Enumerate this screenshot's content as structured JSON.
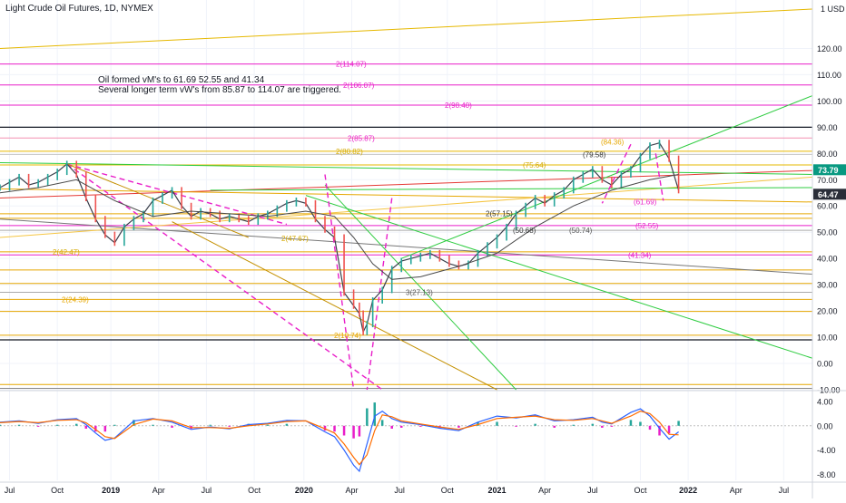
{
  "chart_data": {
    "type": "line",
    "title": "Light Crude Oil Futures, 1D, NYMEX",
    "currency": "USD",
    "annotation": [
      "Oil formed vM's to 61.69 52.55 and 41.34",
      "Several longer term vW's from 85.87 to 114.07 are triggered."
    ],
    "price_axis": {
      "ticks": [
        "120.00",
        "110.00",
        "100.00",
        "90.00",
        "80.00",
        "70.00",
        "60.00",
        "50.00",
        "40.00",
        "30.00",
        "20.00",
        "10.00",
        "0.00",
        "-10.00"
      ],
      "ylim": [
        -10,
        135
      ]
    },
    "time_axis": {
      "ticks": [
        "Jul",
        "Oct",
        "2019",
        "Apr",
        "Jul",
        "Oct",
        "2020",
        "Apr",
        "Jul",
        "Oct",
        "2021",
        "Apr",
        "Jul",
        "Oct",
        "2022",
        "Apr",
        "Jul"
      ],
      "bold": [
        "2019",
        "2020",
        "2021",
        "2022"
      ],
      "range": [
        2018.4,
        2022.65
      ]
    },
    "price_badges": [
      {
        "label": "73.79",
        "value": 73.79,
        "color": "#089981"
      },
      {
        "label": "64.47",
        "value": 64.47,
        "color": "#2a2e39"
      }
    ],
    "level_labels": [
      {
        "text": "2(114.07)",
        "value": 114.07,
        "color": "#e91ec9"
      },
      {
        "text": "2(106.07)",
        "value": 106.07,
        "color": "#e91ec9"
      },
      {
        "text": "2(98.40)",
        "value": 98.4,
        "color": "#e91ec9"
      },
      {
        "text": "2(85.87)",
        "value": 85.87,
        "color": "#e91ec9"
      },
      {
        "text": "2(80.82)",
        "value": 80.82,
        "color": "#d4a900"
      },
      {
        "text": "(84.36)",
        "value": 84.36,
        "color": "#e6a700"
      },
      {
        "text": "(79.58)",
        "value": 79.58,
        "color": "#333333"
      },
      {
        "text": "(75.64)",
        "value": 75.64,
        "color": "#d4a900"
      },
      {
        "text": "(61.69)",
        "value": 61.69,
        "color": "#e91ec9"
      },
      {
        "text": "2(57.15)",
        "value": 57.15,
        "color": "#333333"
      },
      {
        "text": "(50.68)",
        "value": 50.68,
        "color": "#333333"
      },
      {
        "text": "(50.74)",
        "value": 50.74,
        "color": "#555555"
      },
      {
        "text": "(52.55)",
        "value": 52.55,
        "color": "#e91ec9"
      },
      {
        "text": "2(47.67)",
        "value": 47.67,
        "color": "#d4a900"
      },
      {
        "text": "2(42.47)",
        "value": 42.47,
        "color": "#d4a900"
      },
      {
        "text": "(41.34)",
        "value": 41.34,
        "color": "#e91ec9"
      },
      {
        "text": "2(24.39)",
        "value": 24.39,
        "color": "#e6a700"
      },
      {
        "text": "3(27.13)",
        "value": 27.13,
        "color": "#555555"
      },
      {
        "text": "2(10.74)",
        "value": 10.74,
        "color": "#e6a700"
      }
    ],
    "horizontal_levels": [
      {
        "value": 114.07,
        "color": "#e91ec9"
      },
      {
        "value": 106.07,
        "color": "#e91ec9"
      },
      {
        "value": 98.4,
        "color": "#e91ec9"
      },
      {
        "value": 90.0,
        "color": "#131722"
      },
      {
        "value": 85.87,
        "color": "#f48fb1"
      },
      {
        "value": 80.82,
        "color": "#e6b800"
      },
      {
        "value": 79.58,
        "color": "#cccccc"
      },
      {
        "value": 75.64,
        "color": "#e6b800"
      },
      {
        "value": 57.0,
        "color": "#e6a700"
      },
      {
        "value": 55.3,
        "color": "#e6a700"
      },
      {
        "value": 50.7,
        "color": "#aaaaaa"
      },
      {
        "value": 52.55,
        "color": "#e91ec9"
      },
      {
        "value": 41.34,
        "color": "#e91ec9"
      },
      {
        "value": 42.5,
        "color": "#e6a700"
      },
      {
        "value": 35.6,
        "color": "#e6a700"
      },
      {
        "value": 30.5,
        "color": "#e6a700"
      },
      {
        "value": 24.39,
        "color": "#e6a700"
      },
      {
        "value": 27.13,
        "color": "#aaaaaa"
      },
      {
        "value": 19.8,
        "color": "#e6a700"
      },
      {
        "value": 10.74,
        "color": "#e6a700"
      },
      {
        "value": 9.0,
        "color": "#131722"
      },
      {
        "value": -8.0,
        "color": "#e6a700"
      },
      {
        "value": -9.5,
        "color": "#888888"
      }
    ],
    "trend_lines": [
      {
        "p1": [
          2018.4,
          120.0
        ],
        "p2": [
          2022.65,
          135.0
        ],
        "color": "#e6b800",
        "dash": false
      },
      {
        "p1": [
          2018.4,
          63.0
        ],
        "p2": [
          2022.65,
          73.5
        ],
        "color": "#e53935",
        "dash": false
      },
      {
        "p1": [
          2018.4,
          66.5
        ],
        "p2": [
          2022.65,
          61.5
        ],
        "color": "#e6a700",
        "dash": false
      },
      {
        "p1": [
          2018.4,
          55.0
        ],
        "p2": [
          2022.65,
          34.0
        ],
        "color": "#777777",
        "dash": false
      },
      {
        "p1": [
          2018.4,
          48.0
        ],
        "p2": [
          2022.65,
          71.0
        ],
        "color": "#f5c542",
        "dash": false
      },
      {
        "p1": [
          2018.4,
          76.5
        ],
        "p2": [
          2022.65,
          72.0
        ],
        "color": "#2ecc40",
        "dash": false
      },
      {
        "p1": [
          2019.5,
          66.0
        ],
        "p2": [
          2022.65,
          67.0
        ],
        "color": "#2ecc40",
        "dash": false
      },
      {
        "p1": [
          2020.0,
          64.0
        ],
        "p2": [
          2022.65,
          2.0
        ],
        "color": "#2ecc40",
        "dash": false
      },
      {
        "p1": [
          2020.1,
          68.0
        ],
        "p2": [
          2021.1,
          -10.0
        ],
        "color": "#2ecc40",
        "dash": false
      },
      {
        "p1": [
          2020.5,
          40.0
        ],
        "p2": [
          2022.65,
          102.0
        ],
        "color": "#2ecc40",
        "dash": false
      },
      {
        "p1": [
          2018.75,
          76.0
        ],
        "p2": [
          2020.4,
          -10.0
        ],
        "color": "#e91ec9",
        "dash": true
      },
      {
        "p1": [
          2018.75,
          76.0
        ],
        "p2": [
          2019.9,
          53.0
        ],
        "color": "#e91ec9",
        "dash": true
      },
      {
        "p1": [
          2020.1,
          72.0
        ],
        "p2": [
          2020.25,
          -10.0
        ],
        "color": "#e91ec9",
        "dash": true
      },
      {
        "p1": [
          2020.45,
          63.0
        ],
        "p2": [
          2020.32,
          -10.0
        ],
        "color": "#e91ec9",
        "dash": true
      },
      {
        "p1": [
          2021.7,
          83.5
        ],
        "p2": [
          2021.55,
          61.0
        ],
        "color": "#e91ec9",
        "dash": true
      },
      {
        "p1": [
          2021.83,
          80.0
        ],
        "p2": [
          2021.87,
          62.0
        ],
        "color": "#e91ec9",
        "dash": true
      },
      {
        "p1": [
          2018.75,
          76.0
        ],
        "p2": [
          2019.7,
          48.0
        ],
        "color": "#c49000",
        "dash": false
      },
      {
        "p1": [
          2019.3,
          54.0
        ],
        "p2": [
          2021.0,
          -10.0
        ],
        "color": "#c49000",
        "dash": false
      }
    ],
    "price_series": {
      "name": "Close",
      "x": [
        2018.4,
        2018.45,
        2018.5,
        2018.55,
        2018.6,
        2018.65,
        2018.7,
        2018.75,
        2018.8,
        2018.85,
        2018.9,
        2018.95,
        2019.0,
        2019.05,
        2019.1,
        2019.15,
        2019.2,
        2019.25,
        2019.3,
        2019.35,
        2019.4,
        2019.45,
        2019.5,
        2019.55,
        2019.6,
        2019.65,
        2019.7,
        2019.75,
        2019.8,
        2019.85,
        2019.9,
        2019.95,
        2020.0,
        2020.05,
        2020.1,
        2020.15,
        2020.2,
        2020.25,
        2020.28,
        2020.3,
        2020.32,
        2020.35,
        2020.4,
        2020.45,
        2020.5,
        2020.55,
        2020.6,
        2020.65,
        2020.7,
        2020.75,
        2020.8,
        2020.85,
        2020.9,
        2020.95,
        2021.0,
        2021.05,
        2021.1,
        2021.15,
        2021.2,
        2021.25,
        2021.3,
        2021.35,
        2021.4,
        2021.45,
        2021.5,
        2021.55,
        2021.6,
        2021.65,
        2021.7,
        2021.75,
        2021.8,
        2021.85,
        2021.9,
        2021.95
      ],
      "values": [
        67,
        69,
        71,
        68,
        69,
        71,
        73,
        76,
        72,
        63,
        55,
        49,
        46,
        52,
        55,
        57,
        62,
        64,
        66,
        60,
        56,
        58,
        57,
        55,
        56,
        55,
        54,
        56,
        57,
        59,
        61,
        62,
        61,
        55,
        51,
        48,
        27,
        22,
        19,
        12,
        15,
        24,
        28,
        36,
        39,
        40,
        41,
        42,
        40,
        38,
        37,
        38,
        42,
        45,
        48,
        52,
        57,
        60,
        63,
        61,
        64,
        66,
        70,
        72,
        74,
        70,
        68,
        72,
        74,
        79,
        83,
        84,
        78,
        66
      ]
    },
    "moving_average": {
      "name": "MA",
      "x": [
        2018.4,
        2018.6,
        2018.8,
        2019.0,
        2019.2,
        2019.4,
        2019.6,
        2019.8,
        2020.0,
        2020.15,
        2020.25,
        2020.35,
        2020.45,
        2020.6,
        2020.8,
        2021.0,
        2021.2,
        2021.4,
        2021.6,
        2021.8,
        2021.95
      ],
      "values": [
        65,
        67,
        70,
        62,
        56,
        58,
        57,
        56,
        58,
        56,
        48,
        38,
        32,
        33,
        37,
        42,
        52,
        60,
        66,
        70,
        72
      ]
    },
    "macd": {
      "ticks": [
        "4.00",
        "0.00",
        "-4.00",
        "-8.00"
      ],
      "ylim": [
        -9,
        5.5
      ],
      "x": [
        2018.4,
        2018.5,
        2018.6,
        2018.7,
        2018.8,
        2018.85,
        2018.9,
        2018.95,
        2019.0,
        2019.1,
        2019.2,
        2019.3,
        2019.4,
        2019.5,
        2019.6,
        2019.7,
        2019.8,
        2019.9,
        2020.0,
        2020.1,
        2020.15,
        2020.2,
        2020.25,
        2020.28,
        2020.32,
        2020.36,
        2020.4,
        2020.45,
        2020.5,
        2020.6,
        2020.7,
        2020.8,
        2020.9,
        2021.0,
        2021.1,
        2021.2,
        2021.3,
        2021.4,
        2021.5,
        2021.55,
        2021.6,
        2021.7,
        2021.75,
        2021.8,
        2021.85,
        2021.9,
        2021.95
      ],
      "macd_line": [
        0.6,
        0.8,
        0.4,
        1.0,
        1.2,
        0.2,
        -1.2,
        -2.4,
        -2.0,
        0.8,
        1.2,
        0.6,
        -0.6,
        -0.2,
        -0.5,
        0.2,
        0.4,
        0.9,
        0.8,
        -1.0,
        -1.8,
        -4.0,
        -6.5,
        -7.5,
        -3.0,
        1.6,
        2.4,
        1.2,
        0.6,
        0.2,
        -0.4,
        -0.8,
        0.6,
        1.6,
        1.3,
        1.8,
        0.8,
        1.0,
        1.4,
        0.6,
        0.3,
        2.2,
        2.8,
        1.6,
        -0.4,
        -2.2,
        -1.0
      ],
      "signal_line": [
        0.5,
        0.7,
        0.5,
        0.9,
        1.0,
        0.5,
        -0.6,
        -1.8,
        -2.1,
        0.2,
        1.1,
        0.8,
        -0.3,
        -0.3,
        -0.4,
        0.0,
        0.3,
        0.7,
        0.8,
        -0.5,
        -1.2,
        -3.0,
        -5.2,
        -6.4,
        -4.8,
        -0.8,
        1.8,
        1.5,
        0.8,
        0.3,
        -0.2,
        -0.6,
        0.2,
        1.2,
        1.4,
        1.6,
        1.0,
        0.9,
        1.2,
        0.8,
        0.4,
        1.6,
        2.4,
        2.0,
        0.6,
        -1.4,
        -1.5
      ]
    }
  }
}
